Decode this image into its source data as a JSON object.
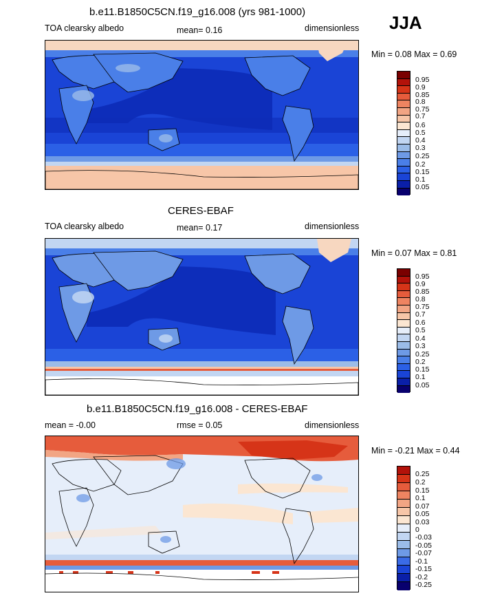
{
  "season": "JJA",
  "palette_abs": [
    "#08006e",
    "#0a1fa8",
    "#1a44d6",
    "#2b60e6",
    "#4a7fe8",
    "#6e9ae6",
    "#9bbce8",
    "#c2d6f2",
    "#e6eefa",
    "#fbe6d2",
    "#f7c6a8",
    "#f2a584",
    "#ee8461",
    "#e65c3c",
    "#d63418",
    "#b3120a",
    "#7a0000"
  ],
  "ticks_abs": [
    "0.95",
    "0.9",
    "0.85",
    "0.8",
    "0.75",
    "0.7",
    "0.6",
    "0.5",
    "0.4",
    "0.3",
    "0.25",
    "0.2",
    "0.15",
    "0.1",
    "0.05"
  ],
  "palette_diff": [
    "#08006e",
    "#0a1fa8",
    "#1a44d6",
    "#3a6be6",
    "#6e9ae6",
    "#9bbce8",
    "#c2d6f2",
    "#e6eefa",
    "#fbe6d2",
    "#f7c6a8",
    "#f2a584",
    "#ee8461",
    "#e65c3c",
    "#d63418",
    "#b3120a"
  ],
  "ticks_diff": [
    "0.25",
    "0.2",
    "0.15",
    "0.1",
    "0.07",
    "0.05",
    "0.03",
    "0",
    "-0.03",
    "-0.05",
    "-0.07",
    "-0.1",
    "-0.15",
    "-0.2",
    "-0.25"
  ],
  "panels": [
    {
      "title": "b.e11.B1850C5CN.f19_g16.008 (yrs 981-1000)",
      "left": "TOA clearsky albedo",
      "mid": "mean=  0.16",
      "right": "dimensionless",
      "minmax": "Min =  0.08 Max =  0.69"
    },
    {
      "title": "CERES-EBAF",
      "left": "TOA clearsky albedo",
      "mid": "mean=  0.17",
      "right": "dimensionless",
      "minmax": "Min =  0.07 Max =  0.81"
    },
    {
      "title": "b.e11.B1850C5CN.f19_g16.008 - CERES-EBAF",
      "left": "mean = -0.00",
      "mid": "rmse =  0.05",
      "right": "dimensionless",
      "minmax": "Min = -0.21 Max =  0.44"
    }
  ]
}
